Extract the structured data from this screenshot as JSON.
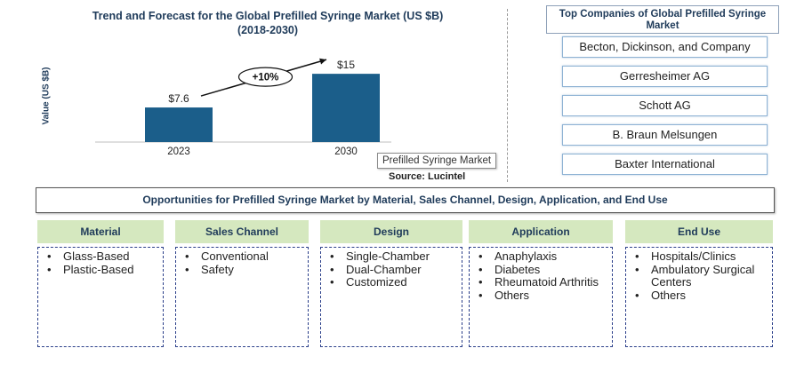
{
  "chart_data": {
    "type": "bar",
    "title": "Trend and Forecast for the Global Prefilled Syringe Market  (US $B)",
    "subtitle": "(2018-2030)",
    "ylabel": "Value (US $B)",
    "categories": [
      "2023",
      "2030"
    ],
    "values": [
      7.6,
      15
    ],
    "data_labels": [
      "$7.6",
      "$15"
    ],
    "bar_color": "#1b5e8a",
    "ylim": [
      0,
      16
    ],
    "grid": false,
    "annotation": "+10%"
  },
  "source": "Source: Lucintel",
  "tooltip": "Prefilled Syringe Market",
  "companies": {
    "header": "Top Companies of Global Prefilled Syringe Market",
    "items": [
      "Becton, Dickinson, and Company",
      "Gerresheimer AG",
      "Schott AG",
      "B. Braun Melsungen",
      "Baxter International"
    ]
  },
  "opportunities": {
    "title": "Opportunities for Prefilled Syringe Market by Material, Sales Channel, Design, Application, and End Use",
    "segments": [
      {
        "title": "Material",
        "items": [
          "Glass-Based",
          "Plastic-Based"
        ]
      },
      {
        "title": "Sales Channel",
        "items": [
          "Conventional",
          "Safety"
        ]
      },
      {
        "title": "Design",
        "items": [
          "Single-Chamber",
          "Dual-Chamber",
          "Customized"
        ]
      },
      {
        "title": "Application",
        "items": [
          "Anaphylaxis",
          "Diabetes",
          "Rheumatoid Arthritis",
          "Others"
        ]
      },
      {
        "title": "End Use",
        "items": [
          "Hospitals/Clinics",
          "Ambulatory Surgical Centers",
          "Others"
        ]
      }
    ]
  },
  "colors": {
    "title_text": "#1f3b5a",
    "segment_header_bg": "#d5e8bf",
    "segment_border": "#2b3f8a",
    "company_border": "#8fb3d4"
  }
}
